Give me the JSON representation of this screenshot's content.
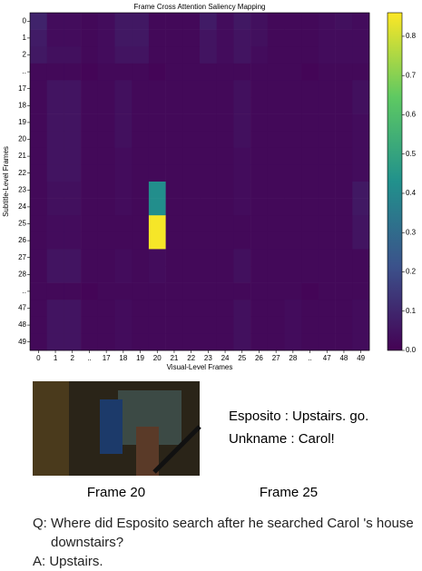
{
  "chart_data": {
    "type": "heatmap",
    "title": "Frame Cross Attention Saliency Mapping",
    "xlabel": "Visual-Level Frames",
    "ylabel": "Subtitle-Level Frames",
    "x_categories": [
      "0",
      "1",
      "2",
      "..",
      "17",
      "18",
      "19",
      "20",
      "21",
      "22",
      "23",
      "24",
      "25",
      "26",
      "27",
      "28",
      "..",
      "47",
      "48",
      "49"
    ],
    "y_categories": [
      "0",
      "1",
      "2",
      "..",
      "17",
      "18",
      "19",
      "20",
      "21",
      "22",
      "23",
      "24",
      "25",
      "26",
      "27",
      "28",
      "..",
      "47",
      "48",
      "49"
    ],
    "colormap": "viridis",
    "clim": [
      0,
      0.86
    ],
    "cticks": [
      {
        "value": 0,
        "label": "0.0"
      },
      {
        "value": 0.1,
        "label": "0.1"
      },
      {
        "value": 0.2,
        "label": "0.2"
      },
      {
        "value": 0.3,
        "label": "0.3"
      },
      {
        "value": 0.4,
        "label": "0.4"
      },
      {
        "value": 0.5,
        "label": "0.5"
      },
      {
        "value": 0.6,
        "label": "0.6"
      },
      {
        "value": 0.7,
        "label": "0.7"
      },
      {
        "value": 0.8,
        "label": "0.8"
      }
    ],
    "values": [
      [
        0.09,
        0.03,
        0.03,
        0.02,
        0.03,
        0.06,
        0.06,
        0.02,
        0.02,
        0.02,
        0.07,
        0.03,
        0.06,
        0.04,
        0.02,
        0.02,
        0.02,
        0.03,
        0.04,
        0.03
      ],
      [
        0.07,
        0.03,
        0.03,
        0.02,
        0.03,
        0.06,
        0.06,
        0.02,
        0.02,
        0.02,
        0.05,
        0.03,
        0.05,
        0.04,
        0.02,
        0.02,
        0.02,
        0.03,
        0.03,
        0.03
      ],
      [
        0.06,
        0.04,
        0.04,
        0.02,
        0.03,
        0.05,
        0.05,
        0.02,
        0.02,
        0.02,
        0.05,
        0.03,
        0.05,
        0.03,
        0.02,
        0.02,
        0.02,
        0.03,
        0.03,
        0.03
      ],
      [
        0.02,
        0.02,
        0.02,
        0.01,
        0.02,
        0.02,
        0.02,
        0.01,
        0.02,
        0.02,
        0.02,
        0.02,
        0.02,
        0.02,
        0.02,
        0.02,
        0.01,
        0.02,
        0.02,
        0.02
      ],
      [
        0.02,
        0.05,
        0.05,
        0.02,
        0.02,
        0.04,
        0.02,
        0.02,
        0.02,
        0.02,
        0.02,
        0.02,
        0.04,
        0.02,
        0.02,
        0.02,
        0.02,
        0.02,
        0.02,
        0.04
      ],
      [
        0.02,
        0.05,
        0.05,
        0.02,
        0.02,
        0.04,
        0.02,
        0.02,
        0.02,
        0.02,
        0.02,
        0.02,
        0.04,
        0.02,
        0.02,
        0.02,
        0.02,
        0.02,
        0.02,
        0.04
      ],
      [
        0.02,
        0.05,
        0.05,
        0.02,
        0.02,
        0.04,
        0.02,
        0.02,
        0.02,
        0.02,
        0.02,
        0.02,
        0.04,
        0.02,
        0.02,
        0.02,
        0.02,
        0.02,
        0.02,
        0.03
      ],
      [
        0.02,
        0.05,
        0.05,
        0.02,
        0.02,
        0.04,
        0.02,
        0.02,
        0.02,
        0.02,
        0.02,
        0.02,
        0.04,
        0.02,
        0.02,
        0.02,
        0.02,
        0.02,
        0.02,
        0.03
      ],
      [
        0.02,
        0.05,
        0.05,
        0.02,
        0.02,
        0.03,
        0.02,
        0.02,
        0.02,
        0.02,
        0.02,
        0.02,
        0.03,
        0.02,
        0.02,
        0.02,
        0.02,
        0.02,
        0.02,
        0.03
      ],
      [
        0.02,
        0.05,
        0.05,
        0.02,
        0.02,
        0.03,
        0.02,
        0.02,
        0.02,
        0.02,
        0.02,
        0.02,
        0.03,
        0.02,
        0.02,
        0.02,
        0.02,
        0.02,
        0.02,
        0.03
      ],
      [
        0.02,
        0.04,
        0.04,
        0.02,
        0.02,
        0.03,
        0.02,
        0.42,
        0.02,
        0.02,
        0.02,
        0.02,
        0.03,
        0.02,
        0.02,
        0.02,
        0.02,
        0.02,
        0.02,
        0.06
      ],
      [
        0.02,
        0.04,
        0.04,
        0.02,
        0.02,
        0.03,
        0.02,
        0.42,
        0.02,
        0.02,
        0.02,
        0.02,
        0.03,
        0.02,
        0.02,
        0.02,
        0.02,
        0.02,
        0.02,
        0.06
      ],
      [
        0.02,
        0.03,
        0.03,
        0.02,
        0.02,
        0.02,
        0.02,
        0.85,
        0.02,
        0.02,
        0.02,
        0.02,
        0.02,
        0.02,
        0.02,
        0.02,
        0.02,
        0.02,
        0.02,
        0.05
      ],
      [
        0.02,
        0.03,
        0.03,
        0.02,
        0.02,
        0.02,
        0.02,
        0.85,
        0.02,
        0.02,
        0.02,
        0.02,
        0.02,
        0.02,
        0.02,
        0.02,
        0.02,
        0.02,
        0.02,
        0.05
      ],
      [
        0.02,
        0.05,
        0.05,
        0.02,
        0.02,
        0.03,
        0.02,
        0.03,
        0.02,
        0.02,
        0.02,
        0.02,
        0.04,
        0.02,
        0.02,
        0.02,
        0.02,
        0.02,
        0.02,
        0.02
      ],
      [
        0.02,
        0.05,
        0.05,
        0.02,
        0.02,
        0.03,
        0.02,
        0.03,
        0.02,
        0.02,
        0.02,
        0.02,
        0.04,
        0.02,
        0.02,
        0.02,
        0.02,
        0.02,
        0.02,
        0.02
      ],
      [
        0.02,
        0.02,
        0.02,
        0.01,
        0.02,
        0.02,
        0.02,
        0.02,
        0.02,
        0.02,
        0.02,
        0.02,
        0.02,
        0.02,
        0.02,
        0.02,
        0.01,
        0.02,
        0.02,
        0.02
      ],
      [
        0.02,
        0.05,
        0.05,
        0.02,
        0.02,
        0.03,
        0.02,
        0.02,
        0.02,
        0.02,
        0.02,
        0.02,
        0.04,
        0.02,
        0.02,
        0.03,
        0.02,
        0.02,
        0.02,
        0.03
      ],
      [
        0.02,
        0.05,
        0.05,
        0.02,
        0.02,
        0.03,
        0.02,
        0.02,
        0.02,
        0.02,
        0.02,
        0.02,
        0.04,
        0.02,
        0.02,
        0.03,
        0.02,
        0.02,
        0.02,
        0.03
      ],
      [
        0.02,
        0.05,
        0.05,
        0.02,
        0.02,
        0.03,
        0.02,
        0.02,
        0.02,
        0.02,
        0.02,
        0.02,
        0.04,
        0.02,
        0.02,
        0.03,
        0.02,
        0.02,
        0.02,
        0.03
      ]
    ]
  },
  "example": {
    "image_caption": "Frame 20",
    "subtitle_caption": "Frame 25",
    "subtitles": [
      "Esposito : Upstairs. go.",
      "Unkname : Carol!"
    ],
    "question": "Q: Where did Esposito search after he searched Carol 's house downstairs?",
    "answer": "A: Upstairs."
  }
}
